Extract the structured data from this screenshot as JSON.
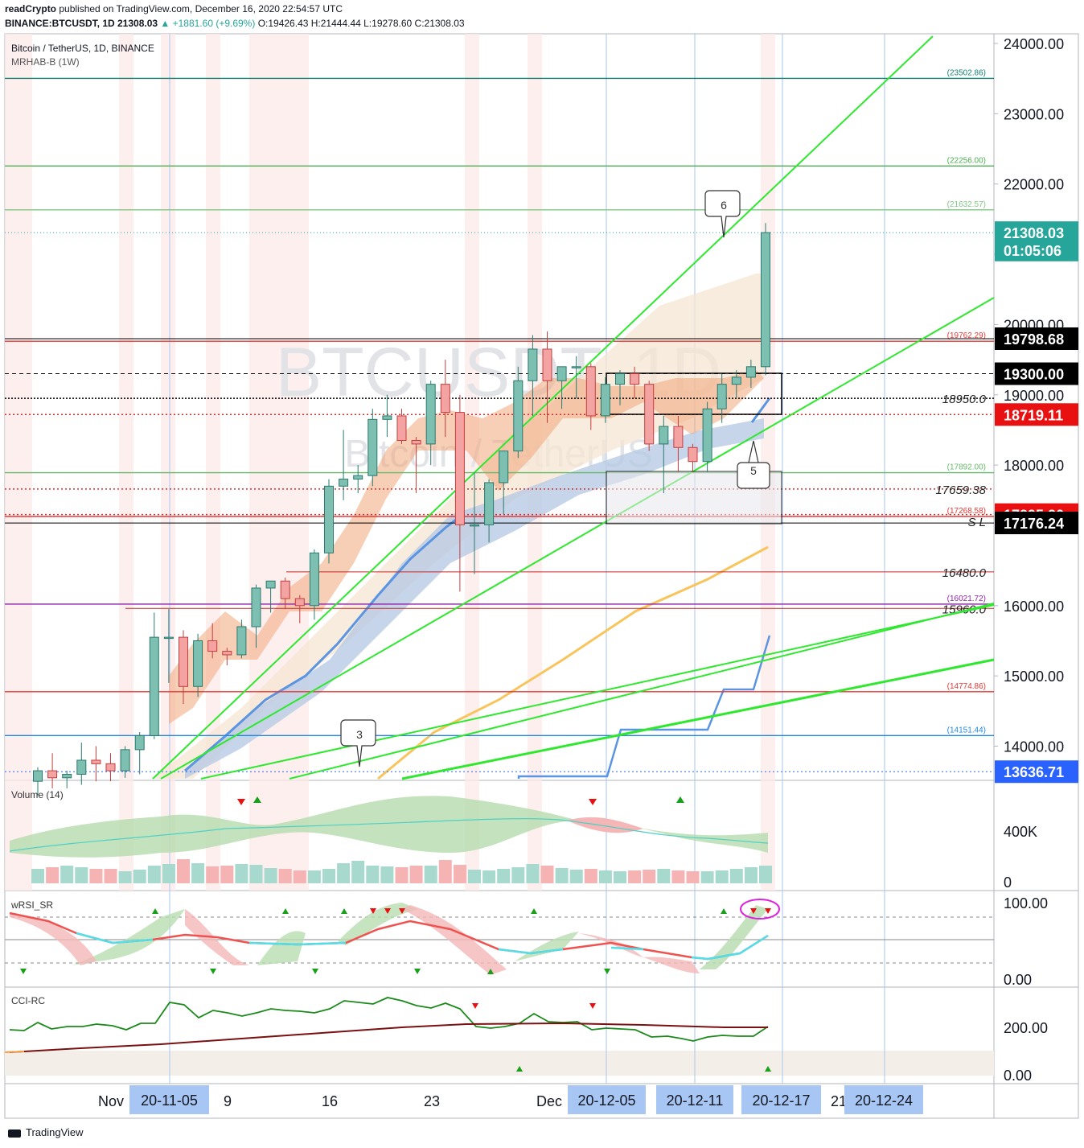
{
  "header": {
    "line1_author": "readCrypto",
    "line1_rest": " published on TradingView.com, December 16, 2020 22:54:57 UTC",
    "symbol_line": "BINANCE:BTCUSDT, 1D  21308.03  ",
    "change": "▲ +1881.60 (+9.69%)",
    "ohlc": " O:19426.43 H:21444.44 L:19278.60 C:21308.03"
  },
  "chart_title": "Bitcoin / TetherUS, 1D, BINANCE",
  "indicator": "MRHAB-B (1W)",
  "watermark": {
    "symbol": "BTCUSDT, 1D",
    "name": "Bitcoin / TetherUS"
  },
  "footer": {
    "brand": "TradingView"
  },
  "colors": {
    "up": "#26a69a",
    "down": "#ef5350",
    "bg_red": "#fde9e9"
  },
  "chart_data": {
    "type": "candlestick",
    "y_axis_ticks": [
      "24000.00",
      "23000.00",
      "22000.00",
      "21000.00",
      "20000.00",
      "19000.00",
      "18000.00",
      "16000.00",
      "15000.00",
      "14000.00"
    ],
    "price_tags": [
      {
        "label": "21308.03",
        "price": 21308.03,
        "bg": "#26a69a",
        "fg": "#ffffff"
      },
      {
        "label": "01:05:06",
        "price": 21060,
        "bg": "#26a69a",
        "fg": "#ffffff"
      },
      {
        "label": "19798.68",
        "price": 19798.68,
        "bg": "#000000",
        "fg": "#ffffff"
      },
      {
        "label": "19300.00",
        "price": 19300,
        "bg": "#000000",
        "fg": "#ffffff"
      },
      {
        "label": "18719.11",
        "price": 18719.11,
        "bg": "#e81010",
        "fg": "#ffffff"
      },
      {
        "label": "17295.20",
        "price": 17295.2,
        "bg": "#e81010",
        "fg": "#ffffff"
      },
      {
        "label": "17176.24",
        "price": 17176.24,
        "bg": "#000000",
        "fg": "#ffffff"
      },
      {
        "label": "13636.71",
        "price": 13636.71,
        "bg": "#2962ff",
        "fg": "#ffffff"
      }
    ],
    "levels": [
      {
        "label": "(23502.86)",
        "price": 23502.86,
        "color": "#137f70"
      },
      {
        "label": "(22256.00)",
        "price": 22256,
        "color": "#4caf50"
      },
      {
        "label": "(21632.57)",
        "price": 21632.57,
        "color": "#81c784"
      },
      {
        "label": "(19762.29)",
        "price": 19762.29,
        "color": "#e53935"
      },
      {
        "label": "(17892.00)",
        "price": 17892,
        "color": "#66bb6a"
      },
      {
        "label": "(17268.58)",
        "price": 17268.58,
        "color": "#e53935"
      },
      {
        "label": "(16021.72)",
        "price": 16021.72,
        "color": "#8e24aa"
      },
      {
        "label": "(14774.86)",
        "price": 14774.86,
        "color": "#e53935"
      },
      {
        "label": "(14151.44)",
        "price": 14151.44,
        "color": "#1e88e5"
      }
    ],
    "text_levels": [
      {
        "label": "18950.0",
        "price": 18950
      },
      {
        "label": "17659.38",
        "price": 17659.38
      },
      {
        "label": "16480.0",
        "price": 16480
      },
      {
        "label": "15960.0",
        "price": 15960
      },
      {
        "label": "S L",
        "price": 17200
      }
    ],
    "callouts": [
      {
        "label": "6",
        "price": 21900,
        "day": 49
      },
      {
        "label": "5",
        "price": 17950,
        "day": 51
      },
      {
        "label": "3",
        "price": 14150,
        "day": 24
      }
    ],
    "candles": [
      [
        13500,
        13700,
        13300,
        13650
      ],
      [
        13650,
        13900,
        13400,
        13550
      ],
      [
        13550,
        13650,
        13400,
        13600
      ],
      [
        13600,
        14050,
        13450,
        13800
      ],
      [
        13800,
        14000,
        13500,
        13750
      ],
      [
        13750,
        13900,
        13500,
        13650
      ],
      [
        13650,
        14000,
        13550,
        13950
      ],
      [
        13950,
        14200,
        13600,
        14150
      ],
      [
        14150,
        15900,
        14100,
        15550
      ],
      [
        15550,
        15950,
        14900,
        15550
      ],
      [
        15550,
        15650,
        14600,
        14850
      ],
      [
        14850,
        15600,
        14700,
        15500
      ],
      [
        15500,
        15750,
        15250,
        15350
      ],
      [
        15350,
        15400,
        15150,
        15300
      ],
      [
        15300,
        15800,
        15250,
        15700
      ],
      [
        15700,
        16300,
        15400,
        16250
      ],
      [
        16250,
        16300,
        15900,
        16350
      ],
      [
        16350,
        16400,
        15950,
        16100
      ],
      [
        16100,
        16150,
        15750,
        16000
      ],
      [
        16000,
        16800,
        15800,
        16750
      ],
      [
        16750,
        17800,
        16600,
        17700
      ],
      [
        17700,
        18500,
        17500,
        17800
      ],
      [
        17800,
        18000,
        17600,
        17850
      ],
      [
        17850,
        18800,
        17700,
        18650
      ],
      [
        18650,
        19000,
        18400,
        18700
      ],
      [
        18700,
        18800,
        18300,
        18350
      ],
      [
        18350,
        18400,
        17600,
        18300
      ],
      [
        18300,
        19200,
        18000,
        19150
      ],
      [
        19150,
        19500,
        18400,
        18750
      ],
      [
        18750,
        19000,
        16200,
        17150
      ],
      [
        17150,
        17900,
        16450,
        17150
      ],
      [
        17150,
        17800,
        16900,
        17750
      ],
      [
        17750,
        18200,
        17300,
        18200
      ],
      [
        18200,
        19400,
        18100,
        19200
      ],
      [
        19200,
        19850,
        18700,
        19650
      ],
      [
        19650,
        19900,
        18600,
        19200
      ],
      [
        19200,
        19400,
        18800,
        19400
      ],
      [
        19400,
        19550,
        18950,
        19400
      ],
      [
        19400,
        19450,
        18500,
        18700
      ],
      [
        18700,
        19250,
        18600,
        19150
      ],
      [
        19150,
        19350,
        18850,
        19300
      ],
      [
        19300,
        19400,
        18950,
        19150
      ],
      [
        19150,
        19200,
        18200,
        18300
      ],
      [
        18300,
        18700,
        17600,
        18550
      ],
      [
        18550,
        18700,
        17900,
        18250
      ],
      [
        18250,
        18300,
        17900,
        18050
      ],
      [
        18050,
        18900,
        17900,
        18800
      ],
      [
        18800,
        19300,
        18600,
        19150
      ],
      [
        19150,
        19350,
        18950,
        19250
      ],
      [
        19250,
        19500,
        19100,
        19400
      ],
      [
        19400,
        21444,
        19278,
        21308
      ]
    ],
    "volume_panel": {
      "label": "Volume (14)",
      "ticks": [
        "400K",
        "0"
      ]
    },
    "rsi_panel": {
      "label": "wRSI_SR",
      "ticks": [
        "100.00",
        "0.00"
      ]
    },
    "cci_panel": {
      "label": "CCI-RC",
      "ticks": [
        "200.00",
        "0.00"
      ]
    },
    "x_labels": [
      "Nov",
      "9",
      "16",
      "23",
      "Dec",
      "21"
    ],
    "x_date_boxes": [
      "20-11-05",
      "20-12-05",
      "20-12-11",
      "20-12-17",
      "20-12-24"
    ]
  }
}
